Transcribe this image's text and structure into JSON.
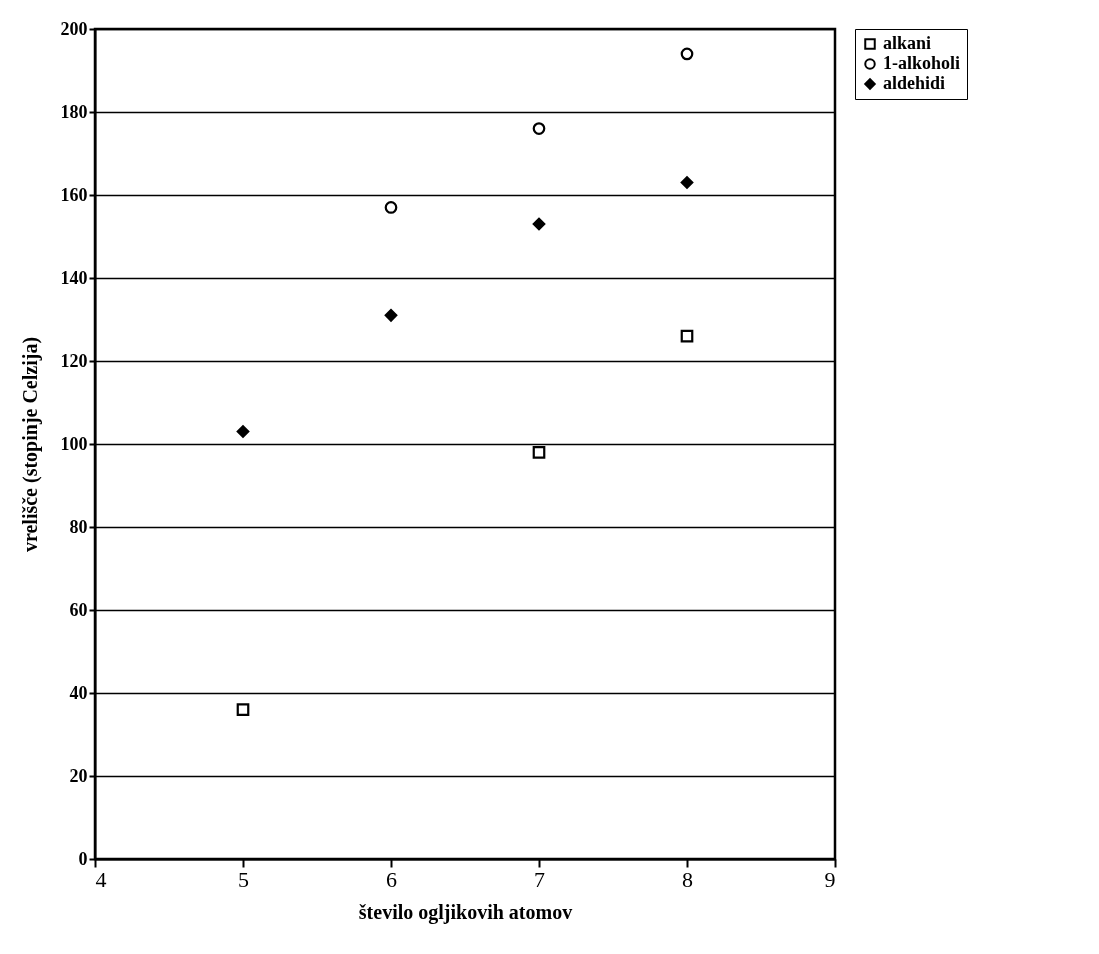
{
  "chart_data": {
    "type": "scatter",
    "xlabel": "število ogljikovih atomov",
    "ylabel": "vrelišče (stopinje Celzija)",
    "x": [
      5,
      6,
      7,
      8
    ],
    "series": [
      {
        "name": "alkani",
        "color": "#000000",
        "marker": "square",
        "values": [
          36,
          null,
          98,
          126
        ]
      },
      {
        "name": "1-alkoholi",
        "color": "#000000",
        "marker": "circle",
        "values": [
          null,
          157,
          176,
          194
        ]
      },
      {
        "name": "aldehidi",
        "color": "#000000",
        "marker": "diamond",
        "values": [
          103,
          131,
          153,
          163
        ]
      }
    ],
    "xlim": [
      4,
      9
    ],
    "xticks": [
      4,
      5,
      6,
      7,
      8,
      9
    ],
    "ylim": [
      0,
      200
    ],
    "yticks": [
      0,
      20,
      40,
      60,
      80,
      100,
      120,
      140,
      160,
      180,
      200
    ],
    "grid": "y",
    "legend": "right"
  }
}
